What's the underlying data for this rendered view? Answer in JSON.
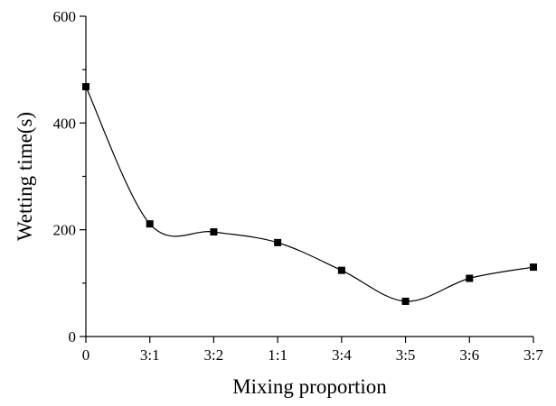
{
  "chart_data": {
    "type": "line",
    "title": "",
    "xlabel": "Mixing proportion",
    "ylabel": "Wetting time(s)",
    "categories": [
      "0",
      "3:1",
      "3:2",
      "1:1",
      "3:4",
      "3:5",
      "3:6",
      "3:7"
    ],
    "series": [
      {
        "values": [
          468,
          211,
          196,
          176,
          124,
          66,
          109,
          130
        ]
      }
    ],
    "ylim": [
      0,
      600
    ],
    "yticks": [
      0,
      200,
      400,
      600
    ],
    "y_minor_step": 100,
    "grid": false,
    "smooth": true,
    "marker": "square",
    "line_color": "#000000",
    "marker_color": "#000000"
  }
}
